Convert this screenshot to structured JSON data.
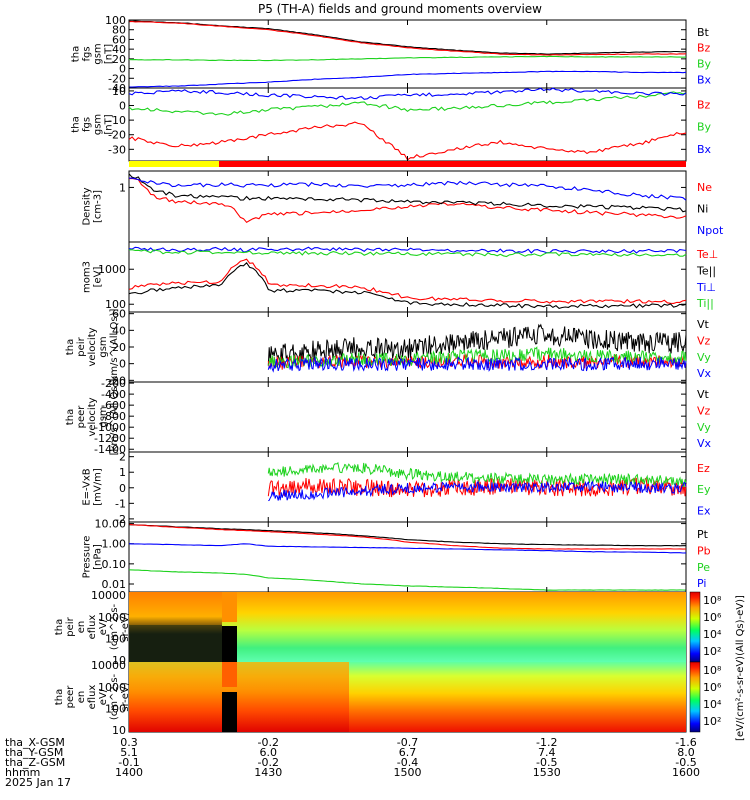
{
  "title": "P5 (TH-A) fields and ground moments overview",
  "colors": {
    "black": "#000000",
    "red": "#ff0000",
    "green": "#1ed21e",
    "blue": "#0000ff",
    "yellow": "#ffff00"
  },
  "chart_data": [
    {
      "type": "line",
      "panel": 1,
      "ylabel": [
        "tha",
        "fgs",
        "gsm",
        "[nT]"
      ],
      "ylim": [
        -40,
        100
      ],
      "yticks": [
        "100",
        "80",
        "60",
        "40",
        "20",
        "0",
        "-20",
        "-40"
      ],
      "x": [
        1400,
        1410,
        1420,
        1430,
        1440,
        1450,
        1500,
        1510,
        1520,
        1530,
        1540,
        1550,
        1600
      ],
      "series": [
        {
          "name": "Bt",
          "color": "#000000",
          "values": [
            98,
            95,
            88,
            82,
            70,
            55,
            45,
            38,
            32,
            30,
            32,
            34,
            35
          ]
        },
        {
          "name": "Bz",
          "color": "#ff0000",
          "values": [
            97,
            94,
            87,
            80,
            68,
            53,
            43,
            36,
            30,
            28,
            29,
            30,
            30
          ]
        },
        {
          "name": "By",
          "color": "#1ed21e",
          "values": [
            18,
            18,
            17,
            17,
            18,
            20,
            22,
            23,
            24,
            25,
            24,
            24,
            24
          ]
        },
        {
          "name": "Bx",
          "color": "#0000ff",
          "values": [
            -38,
            -36,
            -32,
            -28,
            -22,
            -18,
            -12,
            -10,
            -8,
            -6,
            -6,
            -8,
            -8
          ]
        }
      ]
    },
    {
      "type": "line",
      "panel": 2,
      "ylabel": [
        "tha",
        "fgs",
        "gsm",
        "[nT]"
      ],
      "ylim": [
        -38,
        12
      ],
      "yticks": [
        "10",
        "0",
        "-10",
        "-20",
        "-30"
      ],
      "x": [
        1400,
        1410,
        1420,
        1430,
        1440,
        1450,
        1500,
        1510,
        1520,
        1530,
        1540,
        1550,
        1600
      ],
      "series": [
        {
          "name": "Bz",
          "color": "#ff0000",
          "values": [
            -22,
            -28,
            -25,
            -20,
            -15,
            -12,
            -36,
            -30,
            -25,
            -30,
            -32,
            -26,
            -18
          ]
        },
        {
          "name": "By",
          "color": "#1ed21e",
          "values": [
            -2,
            -4,
            -6,
            -3,
            -1,
            2,
            -3,
            -2,
            0,
            2,
            4,
            6,
            9
          ]
        },
        {
          "name": "Bx",
          "color": "#0000ff",
          "values": [
            8,
            10,
            9,
            7,
            6,
            5,
            7,
            8,
            9,
            11,
            10,
            8,
            8
          ]
        }
      ]
    },
    {
      "type": "line",
      "panel": 4,
      "ylabel": [
        "Density",
        "[cm-3]"
      ],
      "yscale": "log",
      "ylim": [
        0.01,
        4
      ],
      "yticks": [
        "1"
      ],
      "x": [
        1400,
        1405,
        1410,
        1420,
        1425,
        1430,
        1440,
        1450,
        1500,
        1510,
        1520,
        1530,
        1540,
        1550,
        1600
      ],
      "series": [
        {
          "name": "Ne",
          "color": "#ff0000",
          "values": [
            2.5,
            0.5,
            0.3,
            0.25,
            0.05,
            0.1,
            0.12,
            0.15,
            0.2,
            0.25,
            0.18,
            0.15,
            0.12,
            0.1,
            0.08
          ]
        },
        {
          "name": "Ni",
          "color": "#000000",
          "values": [
            3,
            0.8,
            0.5,
            0.45,
            0.4,
            0.4,
            0.38,
            0.35,
            0.3,
            0.28,
            0.25,
            0.22,
            0.2,
            0.18,
            0.15
          ]
        },
        {
          "name": "Npot",
          "color": "#0000ff",
          "values": [
            2,
            1.5,
            1.2,
            1.3,
            1.2,
            1.2,
            1.3,
            1.1,
            1.2,
            1.5,
            1.3,
            1.1,
            0.8,
            0.5,
            0.4
          ]
        }
      ]
    },
    {
      "type": "line",
      "panel": 5,
      "ylabel": [
        "mom3",
        "[eV]"
      ],
      "yscale": "log",
      "ylim": [
        60,
        6000
      ],
      "yticks": [
        "1000",
        "100"
      ],
      "x": [
        1400,
        1410,
        1420,
        1425,
        1430,
        1440,
        1450,
        1500,
        1510,
        1520,
        1530,
        1540,
        1550,
        1600
      ],
      "series": [
        {
          "name": "Te⊥",
          "color": "#ff0000",
          "values": [
            300,
            400,
            450,
            2000,
            350,
            350,
            300,
            150,
            140,
            130,
            120,
            125,
            120,
            120
          ]
        },
        {
          "name": "Te||",
          "color": "#000000",
          "values": [
            200,
            300,
            350,
            1500,
            250,
            250,
            220,
            110,
            100,
            95,
            85,
            90,
            90,
            95
          ]
        },
        {
          "name": "Ti⊥",
          "color": "#0000ff",
          "values": [
            4000,
            3500,
            3800,
            3500,
            3800,
            3800,
            3700,
            3600,
            3500,
            3400,
            3300,
            3200,
            3300,
            3300
          ]
        },
        {
          "name": "Ti||",
          "color": "#1ed21e",
          "values": [
            3500,
            3000,
            3200,
            3000,
            3000,
            2900,
            2800,
            2800,
            2700,
            2600,
            2700,
            2600,
            2600,
            2600
          ]
        }
      ]
    },
    {
      "type": "line",
      "panel": 6,
      "ylabel": [
        "tha",
        "peir",
        "velocity",
        "gsm",
        "[km/s^(All Qs)]"
      ],
      "ylim": [
        -22,
        62
      ],
      "yticks": [
        "60",
        "40",
        "20",
        "0",
        "-20"
      ],
      "x": [
        1430,
        1440,
        1450,
        1500,
        1510,
        1520,
        1530,
        1540,
        1550,
        1600
      ],
      "series": [
        {
          "name": "Vt",
          "color": "#000000",
          "values": [
            10,
            15,
            20,
            18,
            25,
            30,
            35,
            30,
            25,
            25
          ]
        },
        {
          "name": "Vz",
          "color": "#ff0000",
          "values": [
            0,
            2,
            3,
            1,
            4,
            2,
            3,
            2,
            3,
            2
          ]
        },
        {
          "name": "Vy",
          "color": "#1ed21e",
          "values": [
            2,
            4,
            6,
            5,
            8,
            10,
            12,
            9,
            8,
            8
          ]
        },
        {
          "name": "Vx",
          "color": "#0000ff",
          "values": [
            -2,
            -1,
            0,
            -1,
            0,
            -1,
            0,
            -1,
            0,
            0
          ]
        }
      ]
    },
    {
      "type": "line",
      "panel": 7,
      "ylabel": [
        "tha",
        "peer",
        "velocity",
        "gsm",
        "[km/s^(All Qs)]"
      ],
      "ylim": [
        -1450,
        -180
      ],
      "yticks": [
        "-200",
        "-400",
        "-600",
        "-800",
        "-1000",
        "-1200",
        "-1400"
      ],
      "series": [
        {
          "name": "Vt",
          "color": "#000000",
          "values": []
        },
        {
          "name": "Vz",
          "color": "#ff0000",
          "values": []
        },
        {
          "name": "Vy",
          "color": "#1ed21e",
          "values": []
        },
        {
          "name": "Vx",
          "color": "#0000ff",
          "values": []
        }
      ]
    },
    {
      "type": "line",
      "panel": 8,
      "ylabel": [
        "E=-VxB",
        "[mV/m]"
      ],
      "ylim": [
        -2.2,
        2.3
      ],
      "yticks": [
        "2",
        "1",
        "0",
        "-1",
        "-2"
      ],
      "x": [
        1430,
        1440,
        1450,
        1500,
        1510,
        1520,
        1530,
        1540,
        1550,
        1600
      ],
      "series": [
        {
          "name": "Ez",
          "color": "#ff0000",
          "values": [
            0,
            0.1,
            0,
            -0.1,
            0,
            0.1,
            0,
            0,
            0.1,
            0
          ]
        },
        {
          "name": "Ey",
          "color": "#1ed21e",
          "values": [
            1.0,
            1.2,
            1.3,
            0.9,
            0.7,
            0.6,
            0.5,
            0.6,
            0.5,
            0.4
          ]
        },
        {
          "name": "Ex",
          "color": "#0000ff",
          "values": [
            -0.5,
            -0.4,
            -0.2,
            0,
            0.1,
            0,
            0,
            0.1,
            0,
            0
          ]
        }
      ]
    },
    {
      "type": "line",
      "panel": 9,
      "ylabel": [
        "Pressure",
        "[nPa]"
      ],
      "yscale": "log",
      "ylim": [
        0.004,
        12
      ],
      "yticks": [
        "10.00",
        "1.00",
        "0.10",
        "0.01"
      ],
      "x": [
        1400,
        1410,
        1420,
        1425,
        1430,
        1440,
        1450,
        1500,
        1510,
        1520,
        1530,
        1540,
        1550,
        1600
      ],
      "series": [
        {
          "name": "Pt",
          "color": "#000000",
          "values": [
            9,
            7,
            5.5,
            5,
            4.5,
            3.5,
            2.5,
            1.6,
            1.2,
            1.0,
            0.9,
            0.85,
            0.8,
            0.8
          ]
        },
        {
          "name": "Pb",
          "color": "#ff0000",
          "values": [
            9,
            6.5,
            5,
            4.5,
            4,
            3,
            2.2,
            1.2,
            0.8,
            0.6,
            0.55,
            0.55,
            0.55,
            0.55
          ]
        },
        {
          "name": "Pe",
          "color": "#1ed21e",
          "values": [
            0.05,
            0.04,
            0.035,
            0.03,
            0.02,
            0.015,
            0.01,
            0.008,
            0.007,
            0.006,
            0.005,
            0.005,
            0.005,
            0.005
          ]
        },
        {
          "name": "Pi",
          "color": "#0000ff",
          "values": [
            1.0,
            0.9,
            0.8,
            1.0,
            0.75,
            0.7,
            0.65,
            0.6,
            0.55,
            0.5,
            0.45,
            0.4,
            0.38,
            0.35
          ]
        }
      ]
    },
    {
      "type": "heatmap",
      "panel": 10,
      "ylabel": [
        "tha",
        "peir",
        "en",
        "eflux",
        "eV/",
        "(cm^2-s-",
        "sr-eV)"
      ],
      "yscale": "log",
      "yticks": [
        "10000",
        "1000",
        "100",
        "10"
      ]
    },
    {
      "type": "heatmap",
      "panel": 11,
      "ylabel": [
        "tha",
        "peer",
        "en",
        "eflux",
        "eV/",
        "(cm^2-s-",
        "sr-eV)"
      ],
      "yscale": "log",
      "yticks": [
        "10000",
        "1000",
        "100",
        "10"
      ]
    }
  ],
  "right_legends": {
    "p1": [
      "Bt",
      "Bz",
      "By",
      "Bx"
    ],
    "p2": [
      "Bz",
      "By",
      "Bx"
    ],
    "p4": [
      "Ne",
      "Ni",
      "Npot"
    ],
    "p5": [
      "Te⊥",
      "Te||",
      "Ti⊥",
      "Ti||"
    ],
    "p6": [
      "Vt",
      "Vz",
      "Vy",
      "Vx"
    ],
    "p7": [
      "Vt",
      "Vz",
      "Vy",
      "Vx"
    ],
    "p8": [
      "Ez",
      "Ey",
      "Ex"
    ],
    "p9": [
      "Pt",
      "Pb",
      "Pe",
      "Pi"
    ]
  },
  "colorbar": {
    "labels1": [
      "10⁸",
      "10⁶",
      "10⁴",
      "10²"
    ],
    "labels2": [
      "10⁸",
      "10⁶",
      "10⁴",
      "10²"
    ],
    "label": "[eV/(cm²-s-sr-eV)(All Qs)-eV)]"
  },
  "ephemeris": {
    "rows": [
      {
        "label": "tha_X-GSM",
        "values": [
          "0.3",
          "-0.2",
          "-0.7",
          "-1.2",
          "-1.6"
        ]
      },
      {
        "label": "tha_Y-GSM",
        "values": [
          "5.1",
          "6.0",
          "6.7",
          "7.4",
          "8.0"
        ]
      },
      {
        "label": "tha_Z-GSM",
        "values": [
          "-0.1",
          "-0.2",
          "-0.4",
          "-0.5",
          "-0.5"
        ]
      },
      {
        "label": "hhmm",
        "values": [
          "1400",
          "1430",
          "1500",
          "1530",
          "1600"
        ]
      }
    ],
    "date": "2025 Jan 17"
  }
}
